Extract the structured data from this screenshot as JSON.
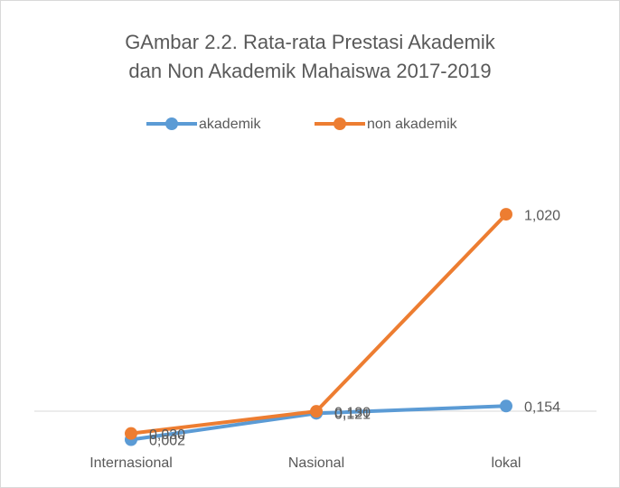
{
  "chart_data": {
    "type": "line",
    "title": [
      "GAmbar 2.2. Rata-rata Prestasi Akademik",
      "dan Non Akademik Mahaiswa 2017-2019"
    ],
    "categories": [
      "Internasional",
      "Nasional",
      "lokal"
    ],
    "series": [
      {
        "name": "akademik",
        "color": "#5b9bd5",
        "values": [
          0.002,
          0.121,
          0.154
        ],
        "value_labels": [
          "0,002",
          "0,121",
          "0,154"
        ]
      },
      {
        "name": "non akademik",
        "color": "#ed7d31",
        "values": [
          0.03,
          0.13,
          1.02
        ],
        "value_labels": [
          "0,030",
          "0,130",
          "1,020"
        ]
      }
    ],
    "ylim": [
      -0.05,
      1.1
    ]
  }
}
